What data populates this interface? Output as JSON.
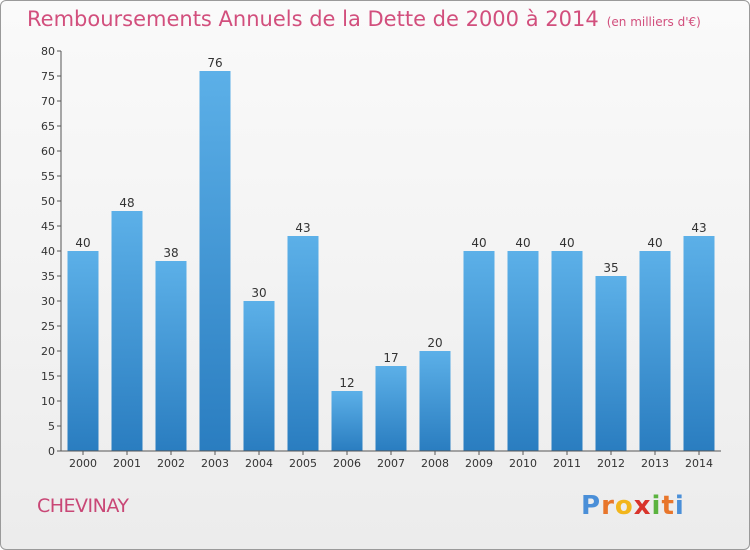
{
  "header": {
    "title": "Remboursements Annuels de la Dette de 2000 à 2014",
    "unit": "(en milliers d'€)"
  },
  "footer": {
    "place": "CHEVINAY",
    "logo_text": "Proxiti"
  },
  "colors": {
    "title": "#d24f7d",
    "bar_light": "#5aade6",
    "bar_dark": "#2a7fc2"
  },
  "chart_data": {
    "type": "bar",
    "title": "Remboursements Annuels de la Dette de 2000 à 2014",
    "xlabel": "",
    "ylabel": "",
    "ylim": [
      0,
      80
    ],
    "yticks": [
      0,
      5,
      10,
      15,
      20,
      25,
      30,
      35,
      40,
      45,
      50,
      55,
      60,
      65,
      70,
      75,
      80
    ],
    "grid": false,
    "categories": [
      "2000",
      "2001",
      "2002",
      "2003",
      "2004",
      "2005",
      "2006",
      "2007",
      "2008",
      "2009",
      "2010",
      "2011",
      "2012",
      "2013",
      "2014"
    ],
    "values": [
      40,
      48,
      38,
      76,
      30,
      43,
      12,
      17,
      20,
      40,
      40,
      40,
      35,
      40,
      43
    ]
  }
}
